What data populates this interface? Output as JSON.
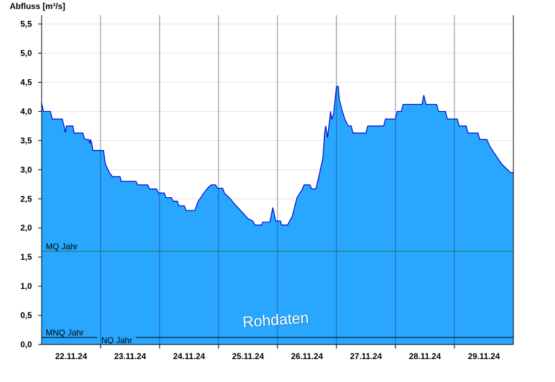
{
  "chart_data": {
    "type": "area",
    "title": "",
    "ylabel": "Abfluss [m³/s]",
    "xlabel": "",
    "ylim": [
      0,
      5.65
    ],
    "x_range_days": [
      21.55,
      29.55
    ],
    "grid": "horizontal-light",
    "yticks": [
      0,
      0.5,
      1.0,
      1.5,
      2.0,
      2.5,
      3.0,
      3.5,
      4.0,
      4.5,
      5.0,
      5.5
    ],
    "ytick_labels": [
      "0,0",
      "0,5",
      "1,0",
      "1,5",
      "2,0",
      "2,5",
      "3,0",
      "3,5",
      "4,0",
      "4,5",
      "5,0",
      "5,5"
    ],
    "date_boundaries": [
      22.55,
      23.55,
      24.55,
      25.55,
      26.55,
      27.55,
      28.55
    ],
    "xtick_positions": [
      22.05,
      23.05,
      24.05,
      25.05,
      26.05,
      27.05,
      28.05,
      29.05
    ],
    "xtick_labels": [
      "22.11.24",
      "23.11.24",
      "24.11.24",
      "25.11.24",
      "26.11.24",
      "27.11.24",
      "28.11.24",
      "29.11.24"
    ],
    "series": [
      {
        "name": "",
        "fill": "#29a7ff",
        "line": "#0000cc",
        "points": [
          [
            21.55,
            4.15
          ],
          [
            21.58,
            4.0
          ],
          [
            21.7,
            4.0
          ],
          [
            21.73,
            3.87
          ],
          [
            21.9,
            3.87
          ],
          [
            21.93,
            3.75
          ],
          [
            21.95,
            3.64
          ],
          [
            21.97,
            3.75
          ],
          [
            22.08,
            3.75
          ],
          [
            22.1,
            3.63
          ],
          [
            22.25,
            3.63
          ],
          [
            22.28,
            3.52
          ],
          [
            22.35,
            3.52
          ],
          [
            22.37,
            3.45
          ],
          [
            22.38,
            3.52
          ],
          [
            22.4,
            3.45
          ],
          [
            22.42,
            3.33
          ],
          [
            22.6,
            3.33
          ],
          [
            22.63,
            3.1
          ],
          [
            22.7,
            2.95
          ],
          [
            22.75,
            2.88
          ],
          [
            22.88,
            2.88
          ],
          [
            22.9,
            2.8
          ],
          [
            23.15,
            2.8
          ],
          [
            23.18,
            2.74
          ],
          [
            23.35,
            2.74
          ],
          [
            23.38,
            2.67
          ],
          [
            23.5,
            2.67
          ],
          [
            23.53,
            2.6
          ],
          [
            23.63,
            2.6
          ],
          [
            23.66,
            2.52
          ],
          [
            23.75,
            2.52
          ],
          [
            23.78,
            2.46
          ],
          [
            23.85,
            2.46
          ],
          [
            23.88,
            2.38
          ],
          [
            23.97,
            2.38
          ],
          [
            24.0,
            2.3
          ],
          [
            24.15,
            2.3
          ],
          [
            24.2,
            2.45
          ],
          [
            24.3,
            2.6
          ],
          [
            24.38,
            2.7
          ],
          [
            24.43,
            2.74
          ],
          [
            24.5,
            2.74
          ],
          [
            24.53,
            2.68
          ],
          [
            24.62,
            2.68
          ],
          [
            24.65,
            2.6
          ],
          [
            24.75,
            2.5
          ],
          [
            24.85,
            2.38
          ],
          [
            24.95,
            2.27
          ],
          [
            25.05,
            2.16
          ],
          [
            25.13,
            2.12
          ],
          [
            25.17,
            2.05
          ],
          [
            25.28,
            2.05
          ],
          [
            25.3,
            2.1
          ],
          [
            25.42,
            2.1
          ],
          [
            25.47,
            2.35
          ],
          [
            25.52,
            2.12
          ],
          [
            25.6,
            2.12
          ],
          [
            25.62,
            2.05
          ],
          [
            25.72,
            2.05
          ],
          [
            25.8,
            2.2
          ],
          [
            25.88,
            2.52
          ],
          [
            25.97,
            2.66
          ],
          [
            26.0,
            2.74
          ],
          [
            26.1,
            2.74
          ],
          [
            26.13,
            2.67
          ],
          [
            26.2,
            2.67
          ],
          [
            26.25,
            2.88
          ],
          [
            26.32,
            3.2
          ],
          [
            26.35,
            3.65
          ],
          [
            26.37,
            3.75
          ],
          [
            26.4,
            3.55
          ],
          [
            26.45,
            4.0
          ],
          [
            26.47,
            3.87
          ],
          [
            26.5,
            3.95
          ],
          [
            26.55,
            4.43
          ],
          [
            26.58,
            4.43
          ],
          [
            26.6,
            4.2
          ],
          [
            26.65,
            4.0
          ],
          [
            26.7,
            3.85
          ],
          [
            26.75,
            3.75
          ],
          [
            26.8,
            3.75
          ],
          [
            26.83,
            3.63
          ],
          [
            27.05,
            3.63
          ],
          [
            27.08,
            3.75
          ],
          [
            27.35,
            3.75
          ],
          [
            27.38,
            3.87
          ],
          [
            27.55,
            3.87
          ],
          [
            27.58,
            4.0
          ],
          [
            27.65,
            4.0
          ],
          [
            27.68,
            4.12
          ],
          [
            28.0,
            4.12
          ],
          [
            28.03,
            4.28
          ],
          [
            28.07,
            4.12
          ],
          [
            28.25,
            4.12
          ],
          [
            28.28,
            4.0
          ],
          [
            28.4,
            4.0
          ],
          [
            28.43,
            3.87
          ],
          [
            28.6,
            3.87
          ],
          [
            28.63,
            3.75
          ],
          [
            28.75,
            3.75
          ],
          [
            28.78,
            3.63
          ],
          [
            28.95,
            3.63
          ],
          [
            28.98,
            3.52
          ],
          [
            29.1,
            3.52
          ],
          [
            29.15,
            3.4
          ],
          [
            29.25,
            3.25
          ],
          [
            29.35,
            3.1
          ],
          [
            29.45,
            3.0
          ],
          [
            29.5,
            2.95
          ],
          [
            29.55,
            2.95
          ]
        ]
      }
    ],
    "reference_lines": [
      {
        "label": "MQ Jahr",
        "value": 1.6,
        "color": "#1a7a3a",
        "label_pos": "left"
      },
      {
        "label": "MNQ Jahr",
        "value": 0.12,
        "color": "#000000",
        "label_pos": "left"
      },
      {
        "label": "NQ Jahr",
        "value": 0.12,
        "color": "#000000",
        "label_pos": "after-mnq"
      }
    ],
    "watermark": "Rohdaten"
  }
}
